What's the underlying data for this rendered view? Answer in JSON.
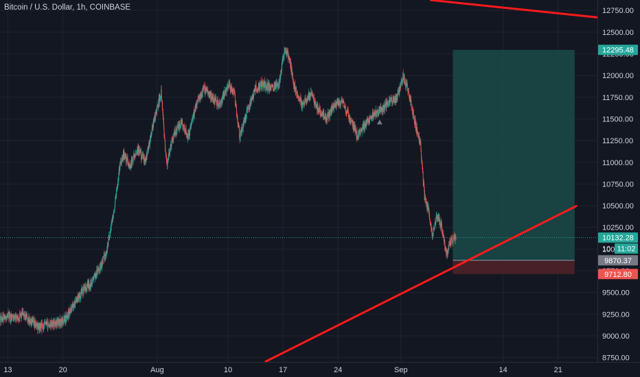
{
  "header": {
    "title": "Bitcoin / U.S. Dollar, 1h, COINBASE"
  },
  "colors": {
    "background": "#131722",
    "grid": "#1f2430",
    "up": "#26a69a",
    "down": "#ef5350",
    "trendline": "#ff1a1a",
    "profit_zone": "#1b4a48",
    "loss_zone": "#4a2228",
    "price_tag": "#26a69a",
    "entry_tag": "#787b86",
    "stop_tag": "#ef5350",
    "axis_text": "#d1d4dc"
  },
  "chart_data": {
    "type": "candlestick",
    "symbol": "Bitcoin / U.S. Dollar",
    "interval": "1h",
    "exchange": "COINBASE",
    "x_tick_labels": [
      "13",
      "20",
      "Aug",
      "10",
      "17",
      "24",
      "Sep",
      "14",
      "21"
    ],
    "x_tick_days": [
      13,
      20,
      32,
      41,
      48,
      55,
      63,
      76,
      83
    ],
    "x_range_days": [
      12,
      88
    ],
    "y_ticks": [
      8750,
      9000,
      9250,
      9500,
      9750,
      10000,
      10250,
      10500,
      10750,
      11000,
      11250,
      11500,
      11750,
      12000,
      12250,
      12500,
      12750
    ],
    "ylim": [
      8700,
      12870
    ],
    "price_path": [
      {
        "day": 12.0,
        "price": 9200
      },
      {
        "day": 13.0,
        "price": 9230
      },
      {
        "day": 14.0,
        "price": 9200
      },
      {
        "day": 15.0,
        "price": 9250
      },
      {
        "day": 16.0,
        "price": 9150
      },
      {
        "day": 17.0,
        "price": 9100
      },
      {
        "day": 18.0,
        "price": 9130
      },
      {
        "day": 19.0,
        "price": 9150
      },
      {
        "day": 20.0,
        "price": 9170
      },
      {
        "day": 20.8,
        "price": 9250
      },
      {
        "day": 21.5,
        "price": 9380
      },
      {
        "day": 22.5,
        "price": 9520
      },
      {
        "day": 23.5,
        "price": 9600
      },
      {
        "day": 24.5,
        "price": 9750
      },
      {
        "day": 25.5,
        "price": 9950
      },
      {
        "day": 26.5,
        "price": 10450
      },
      {
        "day": 27.3,
        "price": 11000
      },
      {
        "day": 27.8,
        "price": 11100
      },
      {
        "day": 28.5,
        "price": 10950
      },
      {
        "day": 29.5,
        "price": 11150
      },
      {
        "day": 30.5,
        "price": 11000
      },
      {
        "day": 31.5,
        "price": 11450
      },
      {
        "day": 32.5,
        "price": 11800
      },
      {
        "day": 33.2,
        "price": 10950
      },
      {
        "day": 34.0,
        "price": 11300
      },
      {
        "day": 35.0,
        "price": 11450
      },
      {
        "day": 36.0,
        "price": 11300
      },
      {
        "day": 37.0,
        "price": 11700
      },
      {
        "day": 38.0,
        "price": 11850
      },
      {
        "day": 39.0,
        "price": 11750
      },
      {
        "day": 40.0,
        "price": 11650
      },
      {
        "day": 41.0,
        "price": 11900
      },
      {
        "day": 41.8,
        "price": 11800
      },
      {
        "day": 42.5,
        "price": 11300
      },
      {
        "day": 43.5,
        "price": 11600
      },
      {
        "day": 44.5,
        "price": 11850
      },
      {
        "day": 45.5,
        "price": 11900
      },
      {
        "day": 46.5,
        "price": 11850
      },
      {
        "day": 47.5,
        "price": 11900
      },
      {
        "day": 48.2,
        "price": 12300
      },
      {
        "day": 48.8,
        "price": 12200
      },
      {
        "day": 49.5,
        "price": 11850
      },
      {
        "day": 50.5,
        "price": 11650
      },
      {
        "day": 51.5,
        "price": 11800
      },
      {
        "day": 52.5,
        "price": 11600
      },
      {
        "day": 53.5,
        "price": 11500
      },
      {
        "day": 54.5,
        "price": 11650
      },
      {
        "day": 55.5,
        "price": 11700
      },
      {
        "day": 56.5,
        "price": 11500
      },
      {
        "day": 57.5,
        "price": 11300
      },
      {
        "day": 58.5,
        "price": 11450
      },
      {
        "day": 59.5,
        "price": 11550
      },
      {
        "day": 60.5,
        "price": 11600
      },
      {
        "day": 61.5,
        "price": 11700
      },
      {
        "day": 62.5,
        "price": 11750
      },
      {
        "day": 63.3,
        "price": 12000
      },
      {
        "day": 64.0,
        "price": 11800
      },
      {
        "day": 64.8,
        "price": 11450
      },
      {
        "day": 65.5,
        "price": 11200
      },
      {
        "day": 66.0,
        "price": 10600
      },
      {
        "day": 66.5,
        "price": 10450
      },
      {
        "day": 67.0,
        "price": 10150
      },
      {
        "day": 67.6,
        "price": 10400
      },
      {
        "day": 68.2,
        "price": 10250
      },
      {
        "day": 68.8,
        "price": 9950
      },
      {
        "day": 69.4,
        "price": 10100
      },
      {
        "day": 70.0,
        "price": 10132
      }
    ],
    "current_price": 10132.28,
    "countdown": "11:02",
    "countdown_partial_tick": "10",
    "entry_price": 9870.37,
    "take_profit": 12295.48,
    "stop_loss": 9712.8,
    "position_start_day": 69.6,
    "position_end_day": 85.1,
    "trendlines": [
      {
        "from": {
          "day": 45.7,
          "price": 8700
        },
        "to": {
          "day": 85.4,
          "price": 10500
        }
      },
      {
        "from": {
          "day": 66.7,
          "price": 12870
        },
        "to": {
          "day": 88.0,
          "price": 12670
        }
      }
    ],
    "markers": [
      {
        "day": 60.3,
        "price": 11460,
        "shape": "triangle-up"
      }
    ]
  }
}
